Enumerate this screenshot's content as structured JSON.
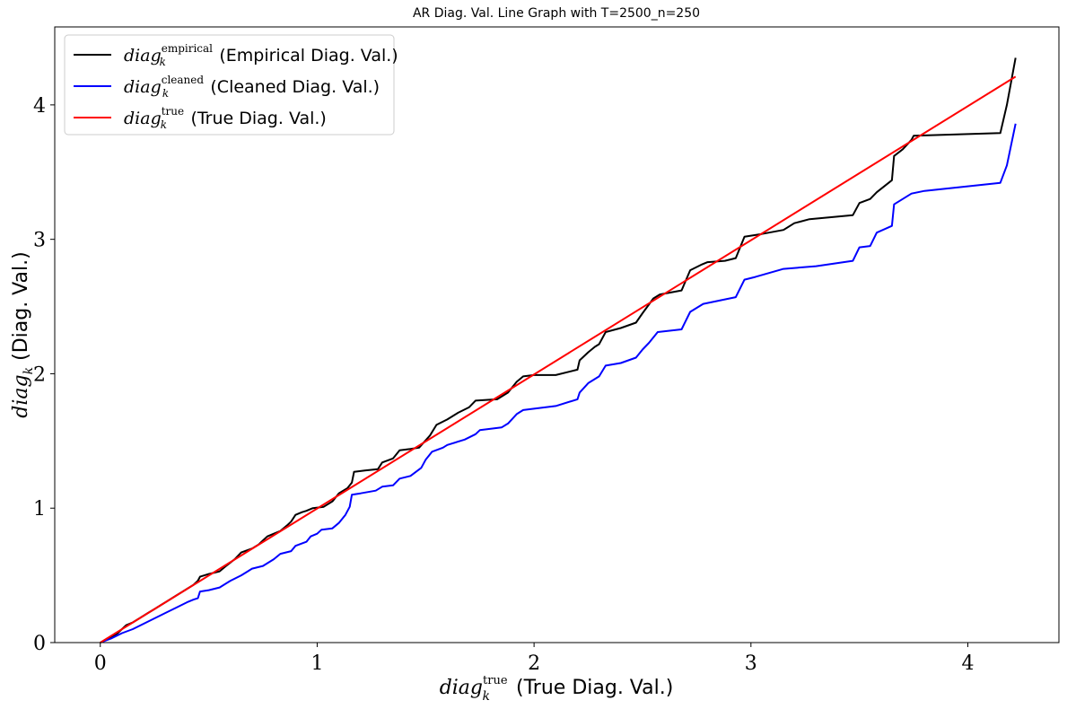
{
  "chart_data": {
    "type": "line",
    "title": "AR Diag. Val. Line Graph with T=2500_n=250",
    "xlabel": {
      "base": "diag",
      "sup": "true",
      "sub": "k",
      "text": " (True Diag. Val.)"
    },
    "ylabel": {
      "base": "diag",
      "sub": "k",
      "text": " (Diag. Val.)"
    },
    "xlim": [
      -0.21,
      4.42
    ],
    "ylim": [
      0,
      4.58
    ],
    "xticks": [
      0,
      1,
      2,
      3,
      4
    ],
    "yticks": [
      0,
      1,
      2,
      3,
      4
    ],
    "xtick_labels": [
      "0",
      "1",
      "2",
      "3",
      "4"
    ],
    "ytick_labels": [
      "0",
      "1",
      "2",
      "3",
      "4"
    ],
    "grid": false,
    "legend_position": "top-left",
    "series": [
      {
        "key": "empirical",
        "legend": {
          "base": "diag",
          "sup": "empirical",
          "sub": "k",
          "text": " (Empirical Diag. Val.)"
        },
        "color": "#000000",
        "points": [
          [
            0,
            0
          ],
          [
            0.05,
            0.04
          ],
          [
            0.08,
            0.07
          ],
          [
            0.1,
            0.1
          ],
          [
            0.12,
            0.13
          ],
          [
            0.15,
            0.15
          ],
          [
            0.18,
            0.18
          ],
          [
            0.2,
            0.2
          ],
          [
            0.22,
            0.22
          ],
          [
            0.25,
            0.25
          ],
          [
            0.28,
            0.28
          ],
          [
            0.3,
            0.3
          ],
          [
            0.33,
            0.33
          ],
          [
            0.35,
            0.35
          ],
          [
            0.38,
            0.38
          ],
          [
            0.4,
            0.4
          ],
          [
            0.43,
            0.43
          ],
          [
            0.45,
            0.46
          ],
          [
            0.46,
            0.49
          ],
          [
            0.48,
            0.5
          ],
          [
            0.5,
            0.51
          ],
          [
            0.55,
            0.53
          ],
          [
            0.58,
            0.57
          ],
          [
            0.62,
            0.62
          ],
          [
            0.65,
            0.67
          ],
          [
            0.7,
            0.7
          ],
          [
            0.73,
            0.73
          ],
          [
            0.75,
            0.76
          ],
          [
            0.77,
            0.79
          ],
          [
            0.8,
            0.81
          ],
          [
            0.83,
            0.83
          ],
          [
            0.86,
            0.87
          ],
          [
            0.88,
            0.9
          ],
          [
            0.9,
            0.95
          ],
          [
            0.93,
            0.97
          ],
          [
            0.95,
            0.98
          ],
          [
            0.98,
            1.0
          ],
          [
            1.03,
            1.01
          ],
          [
            1.07,
            1.05
          ],
          [
            1.1,
            1.11
          ],
          [
            1.14,
            1.15
          ],
          [
            1.16,
            1.19
          ],
          [
            1.17,
            1.27
          ],
          [
            1.22,
            1.28
          ],
          [
            1.28,
            1.29
          ],
          [
            1.3,
            1.34
          ],
          [
            1.35,
            1.37
          ],
          [
            1.38,
            1.43
          ],
          [
            1.43,
            1.44
          ],
          [
            1.47,
            1.45
          ],
          [
            1.52,
            1.54
          ],
          [
            1.55,
            1.62
          ],
          [
            1.6,
            1.66
          ],
          [
            1.65,
            1.71
          ],
          [
            1.7,
            1.75
          ],
          [
            1.73,
            1.8
          ],
          [
            1.83,
            1.81
          ],
          [
            1.88,
            1.86
          ],
          [
            1.92,
            1.94
          ],
          [
            1.95,
            1.98
          ],
          [
            2.0,
            1.99
          ],
          [
            2.1,
            1.99
          ],
          [
            2.2,
            2.03
          ],
          [
            2.21,
            2.1
          ],
          [
            2.25,
            2.16
          ],
          [
            2.28,
            2.2
          ],
          [
            2.3,
            2.22
          ],
          [
            2.33,
            2.31
          ],
          [
            2.4,
            2.34
          ],
          [
            2.47,
            2.38
          ],
          [
            2.5,
            2.45
          ],
          [
            2.55,
            2.56
          ],
          [
            2.58,
            2.59
          ],
          [
            2.68,
            2.62
          ],
          [
            2.72,
            2.77
          ],
          [
            2.77,
            2.81
          ],
          [
            2.8,
            2.83
          ],
          [
            2.88,
            2.84
          ],
          [
            2.93,
            2.86
          ],
          [
            2.97,
            3.02
          ],
          [
            3.05,
            3.04
          ],
          [
            3.15,
            3.07
          ],
          [
            3.2,
            3.12
          ],
          [
            3.27,
            3.15
          ],
          [
            3.47,
            3.18
          ],
          [
            3.5,
            3.27
          ],
          [
            3.55,
            3.3
          ],
          [
            3.58,
            3.35
          ],
          [
            3.65,
            3.44
          ],
          [
            3.66,
            3.62
          ],
          [
            3.7,
            3.67
          ],
          [
            3.74,
            3.74
          ],
          [
            3.75,
            3.77
          ],
          [
            4.15,
            3.79
          ],
          [
            4.18,
            4.0
          ],
          [
            4.22,
            4.35
          ]
        ]
      },
      {
        "key": "cleaned",
        "legend": {
          "base": "diag",
          "sup": "cleaned",
          "sub": "k",
          "text": " (Cleaned Diag. Val.)"
        },
        "color": "#0000ff",
        "points": [
          [
            0,
            0
          ],
          [
            0.05,
            0.03
          ],
          [
            0.1,
            0.07
          ],
          [
            0.15,
            0.1
          ],
          [
            0.2,
            0.14
          ],
          [
            0.25,
            0.18
          ],
          [
            0.3,
            0.22
          ],
          [
            0.35,
            0.26
          ],
          [
            0.4,
            0.3
          ],
          [
            0.43,
            0.32
          ],
          [
            0.45,
            0.33
          ],
          [
            0.46,
            0.38
          ],
          [
            0.5,
            0.39
          ],
          [
            0.55,
            0.41
          ],
          [
            0.6,
            0.46
          ],
          [
            0.65,
            0.5
          ],
          [
            0.68,
            0.53
          ],
          [
            0.7,
            0.55
          ],
          [
            0.75,
            0.57
          ],
          [
            0.8,
            0.62
          ],
          [
            0.83,
            0.66
          ],
          [
            0.88,
            0.68
          ],
          [
            0.9,
            0.72
          ],
          [
            0.95,
            0.75
          ],
          [
            0.97,
            0.79
          ],
          [
            1.0,
            0.81
          ],
          [
            1.02,
            0.84
          ],
          [
            1.07,
            0.85
          ],
          [
            1.1,
            0.89
          ],
          [
            1.13,
            0.95
          ],
          [
            1.15,
            1.01
          ],
          [
            1.16,
            1.1
          ],
          [
            1.2,
            1.11
          ],
          [
            1.27,
            1.13
          ],
          [
            1.3,
            1.16
          ],
          [
            1.35,
            1.17
          ],
          [
            1.38,
            1.22
          ],
          [
            1.43,
            1.24
          ],
          [
            1.48,
            1.3
          ],
          [
            1.5,
            1.36
          ],
          [
            1.53,
            1.42
          ],
          [
            1.58,
            1.45
          ],
          [
            1.6,
            1.47
          ],
          [
            1.68,
            1.51
          ],
          [
            1.73,
            1.55
          ],
          [
            1.75,
            1.58
          ],
          [
            1.85,
            1.6
          ],
          [
            1.88,
            1.63
          ],
          [
            1.92,
            1.7
          ],
          [
            1.95,
            1.73
          ],
          [
            2.0,
            1.74
          ],
          [
            2.1,
            1.76
          ],
          [
            2.2,
            1.81
          ],
          [
            2.21,
            1.86
          ],
          [
            2.25,
            1.93
          ],
          [
            2.3,
            1.98
          ],
          [
            2.33,
            2.06
          ],
          [
            2.4,
            2.08
          ],
          [
            2.47,
            2.12
          ],
          [
            2.5,
            2.18
          ],
          [
            2.53,
            2.23
          ],
          [
            2.57,
            2.31
          ],
          [
            2.68,
            2.33
          ],
          [
            2.72,
            2.46
          ],
          [
            2.78,
            2.52
          ],
          [
            2.9,
            2.56
          ],
          [
            2.93,
            2.57
          ],
          [
            2.97,
            2.7
          ],
          [
            3.02,
            2.72
          ],
          [
            3.15,
            2.78
          ],
          [
            3.3,
            2.8
          ],
          [
            3.47,
            2.84
          ],
          [
            3.5,
            2.94
          ],
          [
            3.55,
            2.95
          ],
          [
            3.58,
            3.05
          ],
          [
            3.65,
            3.1
          ],
          [
            3.66,
            3.26
          ],
          [
            3.7,
            3.3
          ],
          [
            3.74,
            3.34
          ],
          [
            3.8,
            3.36
          ],
          [
            4.15,
            3.42
          ],
          [
            4.18,
            3.55
          ],
          [
            4.22,
            3.86
          ]
        ]
      },
      {
        "key": "true",
        "legend": {
          "base": "diag",
          "sup": "true",
          "sub": "k",
          "text": " (True Diag. Val.)"
        },
        "color": "#ff0000",
        "points": [
          [
            0,
            0
          ],
          [
            4.22,
            4.21
          ]
        ]
      }
    ]
  }
}
